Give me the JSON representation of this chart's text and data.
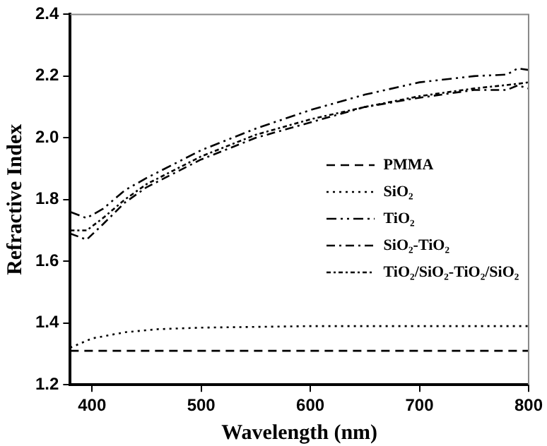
{
  "chart_data": {
    "type": "line",
    "xlabel": "Wavelength (nm)",
    "ylabel": "Refractive Index",
    "xlim": [
      380,
      800
    ],
    "xticks": [
      400,
      500,
      600,
      700,
      800
    ],
    "ylim": [
      1.2,
      2.4
    ],
    "yticks": [
      1.2,
      1.4,
      1.6,
      1.8,
      {
        "value": 2,
        "label": "2.0"
      },
      2.2,
      2.4
    ],
    "grid": false,
    "legend": "right",
    "marker": "none",
    "series": [
      {
        "name": "PMMA",
        "color": "#000000",
        "line_style": "dashed",
        "x": [
          380,
          500,
          600,
          700,
          800
        ],
        "values": [
          1.31,
          1.31,
          1.31,
          1.31,
          1.31
        ]
      },
      {
        "name": "SiO₂",
        "color": "#000000",
        "line_style": "dotted",
        "x": [
          380,
          400,
          430,
          460,
          500,
          600,
          700,
          800
        ],
        "values": [
          1.32,
          1.35,
          1.37,
          1.38,
          1.385,
          1.39,
          1.39,
          1.39
        ]
      },
      {
        "name": "TiO₂",
        "color": "#000000",
        "line_style": "dashed",
        "x": [
          380,
          395,
          410,
          430,
          450,
          500,
          550,
          600,
          650,
          700,
          750,
          780,
          790,
          800
        ],
        "values": [
          1.76,
          1.74,
          1.77,
          1.83,
          1.87,
          1.96,
          2.03,
          2.09,
          2.14,
          2.18,
          2.2,
          2.205,
          2.225,
          2.22
        ]
      },
      {
        "name": "SiO₂-TiO₂",
        "color": "#000000",
        "line_style": "dashed",
        "x": [
          380,
          395,
          410,
          430,
          450,
          500,
          550,
          600,
          650,
          700,
          750,
          780,
          790,
          800
        ],
        "values": [
          1.69,
          1.67,
          1.72,
          1.79,
          1.84,
          1.93,
          2.0,
          2.05,
          2.1,
          2.13,
          2.155,
          2.155,
          2.17,
          2.16
        ]
      },
      {
        "name": "TiO₂/SiO₂-TiO₂/SiO₂",
        "color": "#000000",
        "line_style": "dashed",
        "x": [
          380,
          395,
          410,
          430,
          450,
          500,
          550,
          600,
          650,
          700,
          750,
          790,
          800
        ],
        "values": [
          1.7,
          1.7,
          1.74,
          1.8,
          1.85,
          1.94,
          2.01,
          2.06,
          2.1,
          2.135,
          2.16,
          2.175,
          2.18
        ]
      }
    ]
  }
}
